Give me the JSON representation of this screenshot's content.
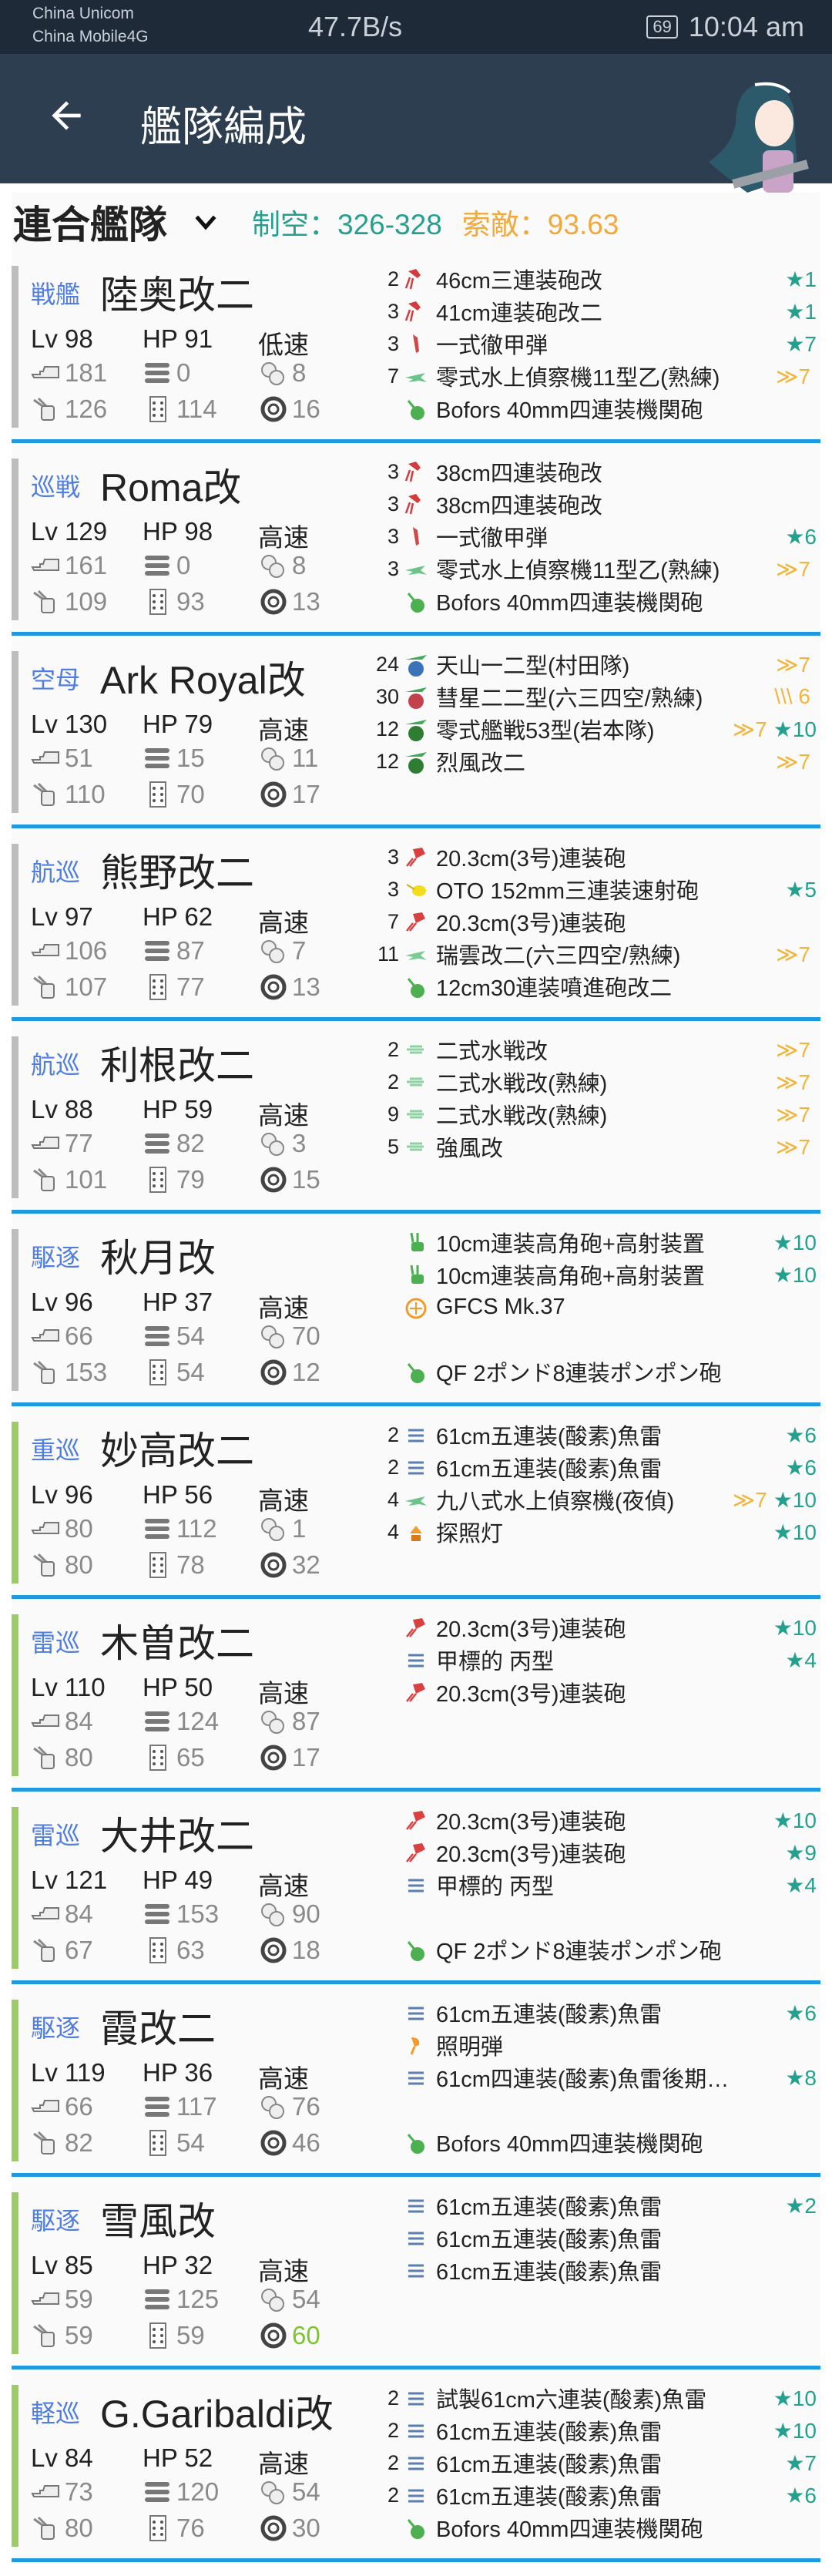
{
  "status_bar": {
    "carrier1": "China Unicom",
    "carrier2": "China Mobile4G",
    "net_speed": "47.7B/s",
    "battery": "69",
    "time": "10:04 am"
  },
  "toolbar": {
    "title": "艦隊編成",
    "back_icon": "arrow-left-icon"
  },
  "fleet_header": {
    "fleet_name": "連合艦隊",
    "air_power": "制空：326-328",
    "los": "索敵：93.63",
    "air_color": "#26a08e",
    "los_color": "#f2a93b"
  },
  "colors": {
    "main_fleet_bar": "#bdbdbd",
    "escort_fleet_bar": "#9ccc65",
    "separator": "#1e9be0",
    "ship_type": "#4f7de0",
    "luck_high": "#7cc52f"
  },
  "ships": [
    {
      "type": "戦艦",
      "name": "陸奥改二",
      "lv": "Lv 98",
      "hp": "HP 91",
      "speed": "低速",
      "fleet": "main",
      "stats": [
        "181",
        "0",
        "8",
        "126",
        "114",
        "16"
      ],
      "equip": [
        {
          "c": "2",
          "i": "main-gun",
          "n": "46cm三連装砲改",
          "p": "",
          "s": "★1"
        },
        {
          "c": "3",
          "i": "main-gun",
          "n": "41cm連装砲改二",
          "p": "",
          "s": "★1"
        },
        {
          "c": "3",
          "i": "ap-shell",
          "n": "一式徹甲弾",
          "p": "",
          "s": "★7"
        },
        {
          "c": "7",
          "i": "seaplane",
          "n": "零式水上偵察機11型乙(熟練)",
          "p": "≫7",
          "s": ""
        },
        {
          "c": "",
          "i": "aa-gun",
          "n": "Bofors 40mm四連装機関砲",
          "p": "",
          "s": ""
        }
      ]
    },
    {
      "type": "巡戦",
      "name": "Roma改",
      "lv": "Lv 129",
      "hp": "HP 98",
      "speed": "高速",
      "fleet": "main",
      "stats": [
        "161",
        "0",
        "8",
        "109",
        "93",
        "13"
      ],
      "equip": [
        {
          "c": "3",
          "i": "main-gun",
          "n": "38cm四連装砲改",
          "p": "",
          "s": ""
        },
        {
          "c": "3",
          "i": "main-gun",
          "n": "38cm四連装砲改",
          "p": "",
          "s": ""
        },
        {
          "c": "3",
          "i": "ap-shell",
          "n": "一式徹甲弾",
          "p": "",
          "s": "★6"
        },
        {
          "c": "3",
          "i": "seaplane",
          "n": "零式水上偵察機11型乙(熟練)",
          "p": "≫7",
          "s": ""
        },
        {
          "c": "",
          "i": "aa-gun",
          "n": "Bofors 40mm四連装機関砲",
          "p": "",
          "s": ""
        }
      ]
    },
    {
      "type": "空母",
      "name": "Ark Royal改",
      "lv": "Lv 130",
      "hp": "HP 79",
      "speed": "高速",
      "fleet": "main",
      "stats": [
        "51",
        "15",
        "11",
        "110",
        "70",
        "17"
      ],
      "equip": [
        {
          "c": "24",
          "i": "torpedo-bomber",
          "n": "天山一二型(村田隊)",
          "p": "≫7",
          "s": ""
        },
        {
          "c": "30",
          "i": "dive-bomber",
          "n": "彗星二二型(六三四空/熟練)",
          "p": "\\\\\\ 6",
          "s": ""
        },
        {
          "c": "12",
          "i": "fighter",
          "n": "零式艦戦53型(岩本隊)",
          "p": "≫7",
          "s": "★10"
        },
        {
          "c": "12",
          "i": "fighter",
          "n": "烈風改二",
          "p": "≫7",
          "s": ""
        },
        null
      ]
    },
    {
      "type": "航巡",
      "name": "熊野改二",
      "lv": "Lv 97",
      "hp": "HP 62",
      "speed": "高速",
      "fleet": "main",
      "stats": [
        "106",
        "87",
        "7",
        "107",
        "77",
        "13"
      ],
      "equip": [
        {
          "c": "3",
          "i": "medium-gun",
          "n": "20.3cm(3号)連装砲",
          "p": "",
          "s": ""
        },
        {
          "c": "3",
          "i": "secondary-gun",
          "n": "OTO 152mm三連装速射砲",
          "p": "",
          "s": "★5"
        },
        {
          "c": "7",
          "i": "medium-gun",
          "n": "20.3cm(3号)連装砲",
          "p": "",
          "s": ""
        },
        {
          "c": "11",
          "i": "seaplane-bomber",
          "n": "瑞雲改二(六三四空/熟練)",
          "p": "≫7",
          "s": ""
        },
        {
          "c": "",
          "i": "aa-gun",
          "n": "12cm30連装噴進砲改二",
          "p": "",
          "s": ""
        }
      ]
    },
    {
      "type": "航巡",
      "name": "利根改二",
      "lv": "Lv 88",
      "hp": "HP 59",
      "speed": "高速",
      "fleet": "main",
      "stats": [
        "77",
        "82",
        "3",
        "101",
        "79",
        "15"
      ],
      "equip": [
        {
          "c": "2",
          "i": "seaplane-fighter",
          "n": "二式水戦改",
          "p": "≫7",
          "s": ""
        },
        {
          "c": "2",
          "i": "seaplane-fighter",
          "n": "二式水戦改(熟練)",
          "p": "≫7",
          "s": ""
        },
        {
          "c": "9",
          "i": "seaplane-fighter",
          "n": "二式水戦改(熟練)",
          "p": "≫7",
          "s": ""
        },
        {
          "c": "5",
          "i": "seaplane-fighter",
          "n": "強風改",
          "p": "≫7",
          "s": ""
        },
        null
      ]
    },
    {
      "type": "駆逐",
      "name": "秋月改",
      "lv": "Lv 96",
      "hp": "HP 37",
      "speed": "高速",
      "fleet": "main",
      "stats": [
        "66",
        "54",
        "70",
        "153",
        "54",
        "12"
      ],
      "equip": [
        {
          "c": "",
          "i": "high-angle-gun",
          "n": "10cm連装高角砲+高射装置",
          "p": "",
          "s": "★10"
        },
        {
          "c": "",
          "i": "high-angle-gun",
          "n": "10cm連装高角砲+高射装置",
          "p": "",
          "s": "★10"
        },
        {
          "c": "",
          "i": "aa-director",
          "n": "GFCS Mk.37",
          "p": "",
          "s": ""
        },
        null,
        {
          "c": "",
          "i": "aa-gun",
          "n": "QF 2ポンド8連装ポンポン砲",
          "p": "",
          "s": ""
        }
      ]
    },
    {
      "type": "重巡",
      "name": "妙高改二",
      "lv": "Lv 96",
      "hp": "HP 56",
      "speed": "高速",
      "fleet": "escort",
      "stats": [
        "80",
        "112",
        "1",
        "80",
        "78",
        "32"
      ],
      "equip": [
        {
          "c": "2",
          "i": "torpedo",
          "n": "61cm五連装(酸素)魚雷",
          "p": "",
          "s": "★6"
        },
        {
          "c": "2",
          "i": "torpedo",
          "n": "61cm五連装(酸素)魚雷",
          "p": "",
          "s": "★6"
        },
        {
          "c": "4",
          "i": "seaplane",
          "n": "九八式水上偵察機(夜偵)",
          "p": "≫7",
          "s": "★10"
        },
        {
          "c": "4",
          "i": "searchlight",
          "n": "探照灯",
          "p": "",
          "s": "★10"
        },
        null
      ]
    },
    {
      "type": "雷巡",
      "name": "木曽改二",
      "lv": "Lv 110",
      "hp": "HP 50",
      "speed": "高速",
      "fleet": "escort",
      "stats": [
        "84",
        "124",
        "87",
        "80",
        "65",
        "17"
      ],
      "equip": [
        {
          "c": "",
          "i": "medium-gun",
          "n": "20.3cm(3号)連装砲",
          "p": "",
          "s": "★10"
        },
        {
          "c": "",
          "i": "midget-sub",
          "n": "甲標的 丙型",
          "p": "",
          "s": "★4"
        },
        {
          "c": "",
          "i": "medium-gun",
          "n": "20.3cm(3号)連装砲",
          "p": "",
          "s": ""
        },
        null,
        null
      ]
    },
    {
      "type": "雷巡",
      "name": "大井改二",
      "lv": "Lv 121",
      "hp": "HP 49",
      "speed": "高速",
      "fleet": "escort",
      "stats": [
        "84",
        "153",
        "90",
        "67",
        "63",
        "18"
      ],
      "equip": [
        {
          "c": "",
          "i": "medium-gun",
          "n": "20.3cm(3号)連装砲",
          "p": "",
          "s": "★10"
        },
        {
          "c": "",
          "i": "medium-gun",
          "n": "20.3cm(3号)連装砲",
          "p": "",
          "s": "★9"
        },
        {
          "c": "",
          "i": "midget-sub",
          "n": "甲標的 丙型",
          "p": "",
          "s": "★4"
        },
        null,
        {
          "c": "",
          "i": "aa-gun",
          "n": "QF 2ポンド8連装ポンポン砲",
          "p": "",
          "s": ""
        }
      ]
    },
    {
      "type": "駆逐",
      "name": "霞改二",
      "lv": "Lv 119",
      "hp": "HP 36",
      "speed": "高速",
      "fleet": "escort",
      "stats": [
        "66",
        "117",
        "76",
        "82",
        "54",
        "46"
      ],
      "equip": [
        {
          "c": "",
          "i": "torpedo",
          "n": "61cm五連装(酸素)魚雷",
          "p": "",
          "s": "★6"
        },
        {
          "c": "",
          "i": "star-shell",
          "n": "照明弾",
          "p": "",
          "s": ""
        },
        {
          "c": "",
          "i": "torpedo",
          "n": "61cm四連装(酸素)魚雷後期…",
          "p": "",
          "s": "★8"
        },
        null,
        {
          "c": "",
          "i": "aa-gun",
          "n": "Bofors 40mm四連装機関砲",
          "p": "",
          "s": ""
        }
      ]
    },
    {
      "type": "駆逐",
      "name": "雪風改",
      "lv": "Lv 85",
      "hp": "HP 32",
      "speed": "高速",
      "fleet": "escort",
      "stats": [
        "59",
        "125",
        "54",
        "59",
        "59",
        "60"
      ],
      "luck_highlight": true,
      "equip": [
        {
          "c": "",
          "i": "torpedo",
          "n": "61cm五連装(酸素)魚雷",
          "p": "",
          "s": "★2"
        },
        {
          "c": "",
          "i": "torpedo",
          "n": "61cm五連装(酸素)魚雷",
          "p": "",
          "s": ""
        },
        {
          "c": "",
          "i": "torpedo",
          "n": "61cm五連装(酸素)魚雷",
          "p": "",
          "s": ""
        },
        null,
        null
      ]
    },
    {
      "type": "軽巡",
      "name": "G.Garibaldi改",
      "lv": "Lv 84",
      "hp": "HP 52",
      "speed": "高速",
      "fleet": "escort",
      "stats": [
        "73",
        "120",
        "54",
        "80",
        "76",
        "30"
      ],
      "equip": [
        {
          "c": "2",
          "i": "torpedo",
          "n": "試製61cm六連装(酸素)魚雷",
          "p": "",
          "s": "★10"
        },
        {
          "c": "2",
          "i": "torpedo",
          "n": "61cm五連装(酸素)魚雷",
          "p": "",
          "s": "★10"
        },
        {
          "c": "2",
          "i": "torpedo",
          "n": "61cm五連装(酸素)魚雷",
          "p": "",
          "s": "★7"
        },
        {
          "c": "2",
          "i": "torpedo",
          "n": "61cm五連装(酸素)魚雷",
          "p": "",
          "s": "★6"
        },
        {
          "c": "",
          "i": "aa-gun",
          "n": "Bofors 40mm四連装機関砲",
          "p": "",
          "s": ""
        }
      ]
    }
  ]
}
